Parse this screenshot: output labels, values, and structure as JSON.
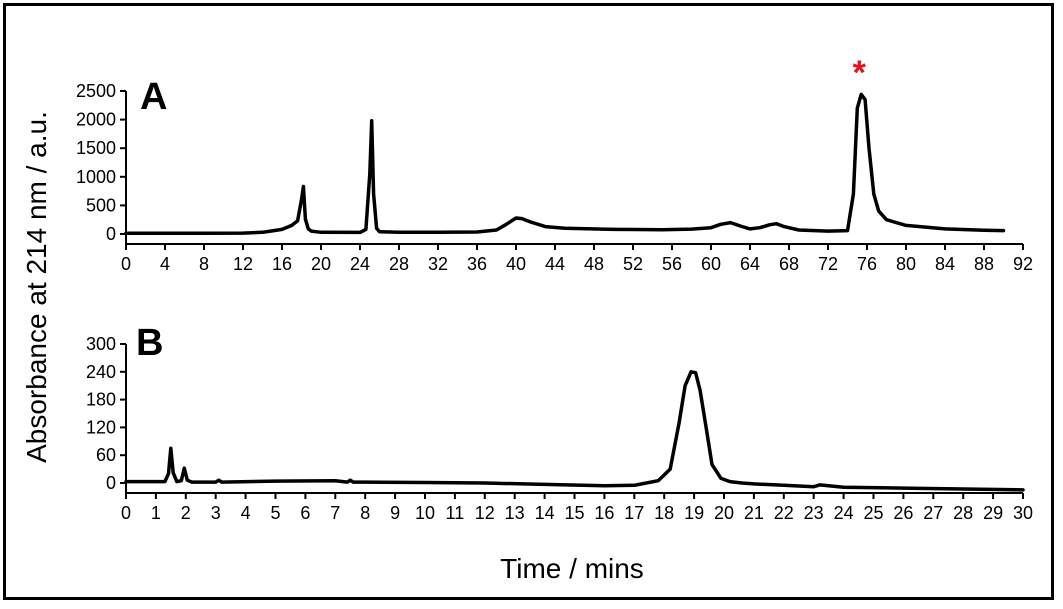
{
  "chart_data": [
    {
      "type": "line",
      "panel_label": "A",
      "xlim": [
        0,
        92
      ],
      "x_ticks": [
        0,
        4,
        8,
        12,
        16,
        20,
        24,
        28,
        32,
        36,
        40,
        44,
        48,
        52,
        56,
        60,
        64,
        68,
        72,
        76,
        80,
        84,
        88,
        92
      ],
      "ylim": [
        0,
        2500
      ],
      "y_ticks": [
        0,
        500,
        1000,
        1500,
        2000,
        2500
      ],
      "series": [
        {
          "x": [
            0,
            4,
            8,
            12,
            14,
            15,
            16,
            17,
            17.6,
            18,
            18.2,
            18.4,
            18.7,
            19,
            20,
            24,
            24.6,
            25,
            25.2,
            25.4,
            25.7,
            26,
            28,
            32,
            36,
            38,
            39,
            40,
            40.6,
            41.5,
            43,
            45,
            50,
            55,
            58,
            60,
            61,
            62,
            63,
            64,
            65,
            66,
            66.7,
            67.5,
            69,
            72,
            74,
            74.6,
            75,
            75.4,
            75.8,
            76.2,
            76.7,
            77.2,
            78,
            80,
            84,
            88,
            90
          ],
          "values": [
            12,
            12,
            14,
            15,
            30,
            55,
            80,
            150,
            230,
            600,
            830,
            260,
            90,
            50,
            30,
            28,
            80,
            1050,
            1980,
            700,
            100,
            40,
            30,
            30,
            35,
            70,
            170,
            280,
            270,
            210,
            130,
            100,
            80,
            75,
            85,
            110,
            170,
            200,
            140,
            90,
            110,
            160,
            180,
            130,
            70,
            50,
            60,
            700,
            2200,
            2440,
            2350,
            1500,
            700,
            400,
            250,
            150,
            90,
            65,
            60
          ]
        }
      ],
      "annotation": {
        "text": "*",
        "x": 75.2,
        "color": "#e8101a"
      }
    },
    {
      "type": "line",
      "panel_label": "B",
      "xlim": [
        0,
        30
      ],
      "x_ticks": [
        0,
        1,
        2,
        3,
        4,
        5,
        6,
        7,
        8,
        9,
        10,
        11,
        12,
        13,
        14,
        15,
        16,
        17,
        18,
        19,
        20,
        21,
        22,
        23,
        24,
        25,
        26,
        27,
        28,
        29,
        30
      ],
      "ylim": [
        0,
        300
      ],
      "y_ticks": [
        0,
        60,
        120,
        180,
        240,
        300
      ],
      "series": [
        {
          "x": [
            0,
            1.3,
            1.42,
            1.5,
            1.58,
            1.7,
            1.85,
            1.95,
            2.05,
            2.2,
            3.0,
            3.1,
            3.2,
            5,
            7,
            7.4,
            7.5,
            7.6,
            8,
            10,
            12,
            14,
            16,
            17,
            17.8,
            18.2,
            18.5,
            18.7,
            18.9,
            19.05,
            19.2,
            19.4,
            19.6,
            19.9,
            20.2,
            20.6,
            21,
            22,
            23,
            23.2,
            24,
            26,
            28,
            30
          ],
          "values": [
            3,
            3,
            20,
            75,
            22,
            3,
            5,
            32,
            6,
            2,
            2,
            6,
            2,
            4,
            5,
            2,
            6,
            2,
            2,
            1,
            0,
            -3,
            -6,
            -5,
            5,
            30,
            130,
            210,
            240,
            238,
            200,
            120,
            40,
            10,
            3,
            0,
            -2,
            -5,
            -8,
            -4,
            -9,
            -11,
            -13,
            -15
          ]
        }
      ]
    }
  ],
  "ylabel": "Absorbance at 214 nm / a.u.",
  "xlabel": "Time / mins",
  "line_color": "#000000"
}
